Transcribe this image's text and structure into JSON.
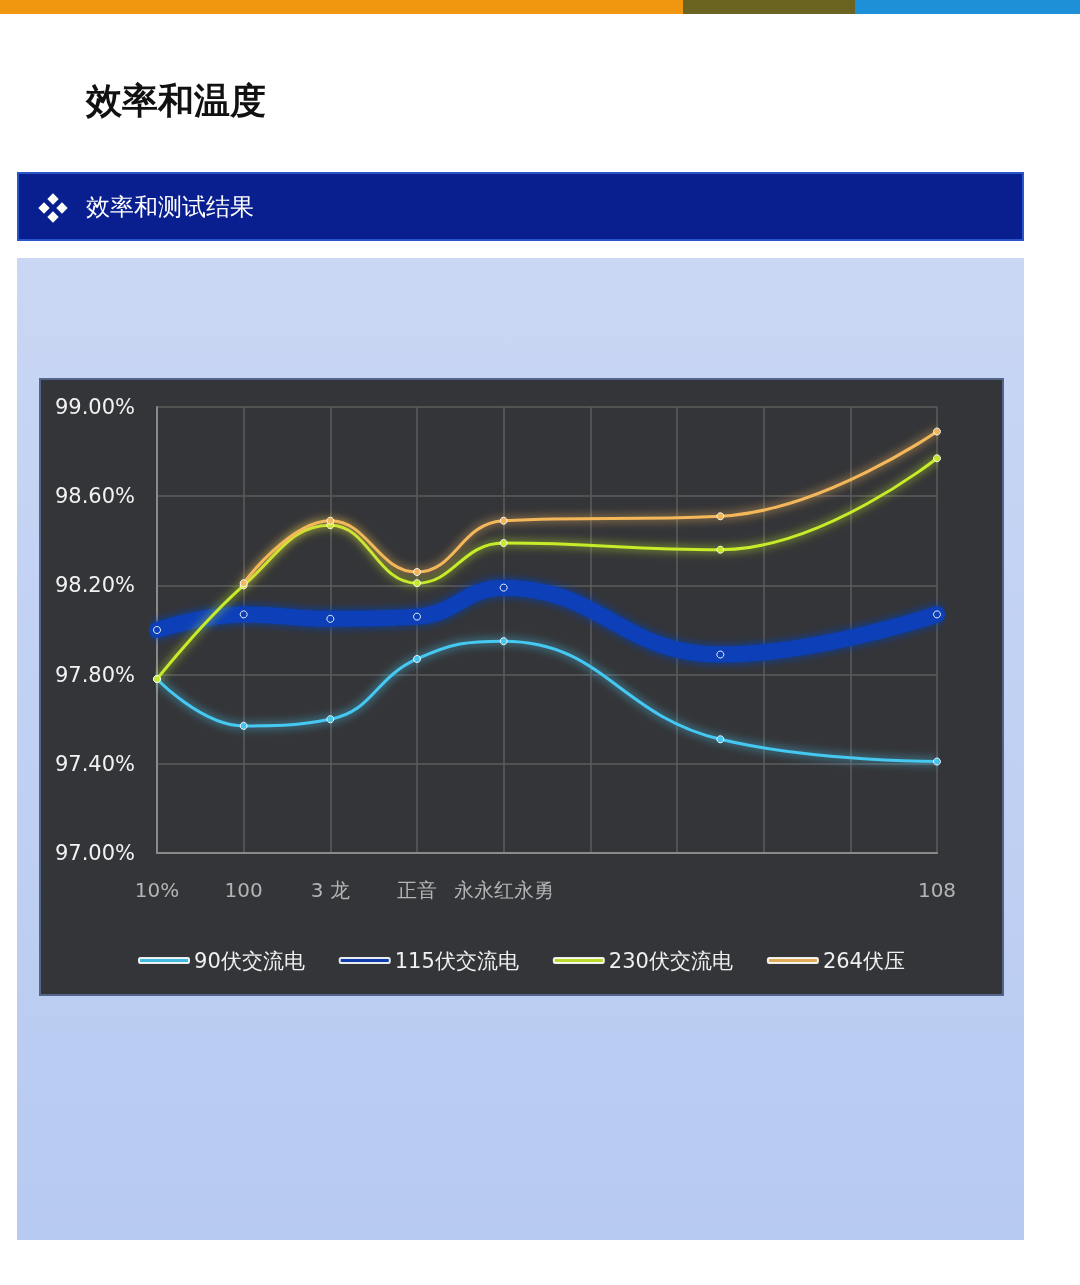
{
  "chart_data": {
    "type": "line",
    "title": "效率和温度",
    "subtitle": "效率和测试结果",
    "categories": [
      "10%",
      null,
      "100",
      null,
      "3 龙",
      null,
      "正音",
      null,
      "永永红永勇",
      null,
      null,
      null,
      null,
      null,
      null,
      null,
      null,
      null,
      "108"
    ],
    "series": [
      {
        "name": "90伏交流电",
        "color": "#45c8f2",
        "values": [
          97.78,
          null,
          97.57,
          null,
          97.6,
          null,
          97.87,
          null,
          97.95,
          null,
          null,
          null,
          null,
          97.51,
          null,
          null,
          null,
          null,
          97.41
        ]
      },
      {
        "name": "115伏交流电",
        "color": "#0b3fb8",
        "values": [
          98.0,
          null,
          98.07,
          null,
          98.05,
          null,
          98.06,
          null,
          98.19,
          null,
          null,
          null,
          null,
          97.89,
          null,
          null,
          null,
          null,
          98.07
        ]
      },
      {
        "name": "230伏交流电",
        "color": "#c6ec2a",
        "values": [
          97.78,
          null,
          98.2,
          null,
          98.47,
          null,
          98.21,
          null,
          98.39,
          null,
          null,
          null,
          null,
          98.36,
          null,
          null,
          null,
          null,
          98.77
        ]
      },
      {
        "name": "264伏压",
        "color": "#f4b85a",
        "values": [
          null,
          null,
          98.21,
          null,
          98.49,
          null,
          98.26,
          null,
          98.49,
          null,
          null,
          null,
          null,
          98.51,
          null,
          null,
          null,
          null,
          98.89
        ]
      }
    ],
    "ylim": [
      97,
      99
    ],
    "yticks": [
      {
        "value": 97,
        "label": "97.00%"
      },
      {
        "value": 97.4,
        "label": "97.40%"
      },
      {
        "value": 97.8,
        "label": "97.80%"
      },
      {
        "value": 98.2,
        "label": "98.20%"
      },
      {
        "value": 98.6,
        "label": "98.60%"
      },
      {
        "value": 99,
        "label": "99.00%"
      }
    ],
    "grid": true,
    "legend": "bottom",
    "marker": "circle",
    "line_style": "solid"
  }
}
